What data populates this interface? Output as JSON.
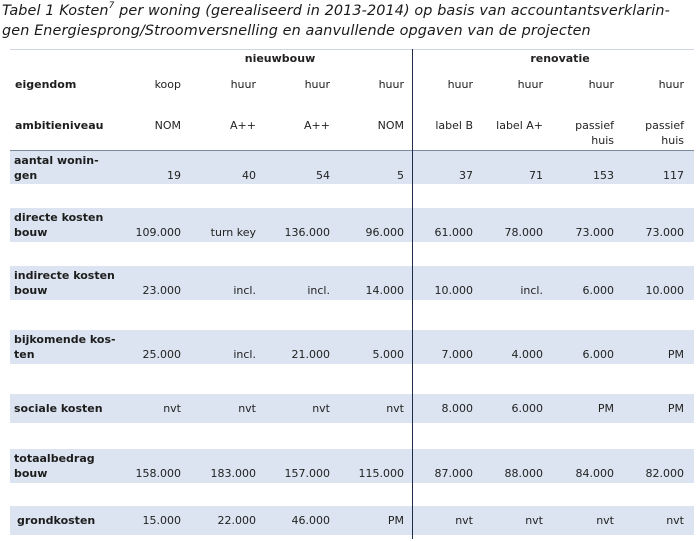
{
  "caption": {
    "line1_prefix": "Tabel 1 Kosten",
    "line1_sup": "7",
    "line1_suffix": " per woning (gerealiseerd in 2013-2014) op basis van accountantsverklarin-",
    "line2": "gen Energiesprong/Stroomversnelling en aanvullende opgaven van de projecten"
  },
  "groups": {
    "new": "nieuwbouw",
    "reno": "renovatie"
  },
  "header_rows": [
    {
      "label": "eigendom",
      "values": [
        "koop",
        "huur",
        "huur",
        "huur",
        "huur",
        "huur",
        "huur",
        "huur"
      ]
    },
    {
      "label": "ambitieniveau",
      "values": [
        "NOM",
        "A++",
        "A++",
        "NOM",
        "label B",
        "label A+",
        "passief\nhuis",
        "passief\nhuis"
      ]
    }
  ],
  "rows": [
    {
      "label": "aantal wonin-\ngen",
      "values": [
        "19",
        "40",
        "54",
        "5",
        "37",
        "71",
        "153",
        "117"
      ]
    },
    {
      "label": "directe kosten\nbouw",
      "values": [
        "109.000",
        "turn key",
        "136.000",
        "96.000",
        "61.000",
        "78.000",
        "73.000",
        "73.000"
      ]
    },
    {
      "label": "indirecte kosten\nbouw",
      "values": [
        "23.000",
        "incl.",
        "incl.",
        "14.000",
        "10.000",
        "incl.",
        "6.000",
        "10.000"
      ]
    },
    {
      "label": "bijkomende kos-\nten",
      "values": [
        "25.000",
        "incl.",
        "21.000",
        "5.000",
        "7.000",
        "4.000",
        "6.000",
        "PM"
      ]
    },
    {
      "label": "sociale kosten",
      "values": [
        "nvt",
        "nvt",
        "nvt",
        "nvt",
        "8.000",
        "6.000",
        "PM",
        "PM"
      ]
    },
    {
      "label": "totaalbedrag\nbouw",
      "values": [
        "158.000",
        "183.000",
        "157.000",
        "115.000",
        "87.000",
        "88.000",
        "84.000",
        "82.000"
      ]
    },
    {
      "label": "grondkosten",
      "values": [
        "15.000",
        "22.000",
        "46.000",
        "PM",
        "nvt",
        "nvt",
        "nvt",
        "nvt"
      ]
    }
  ]
}
